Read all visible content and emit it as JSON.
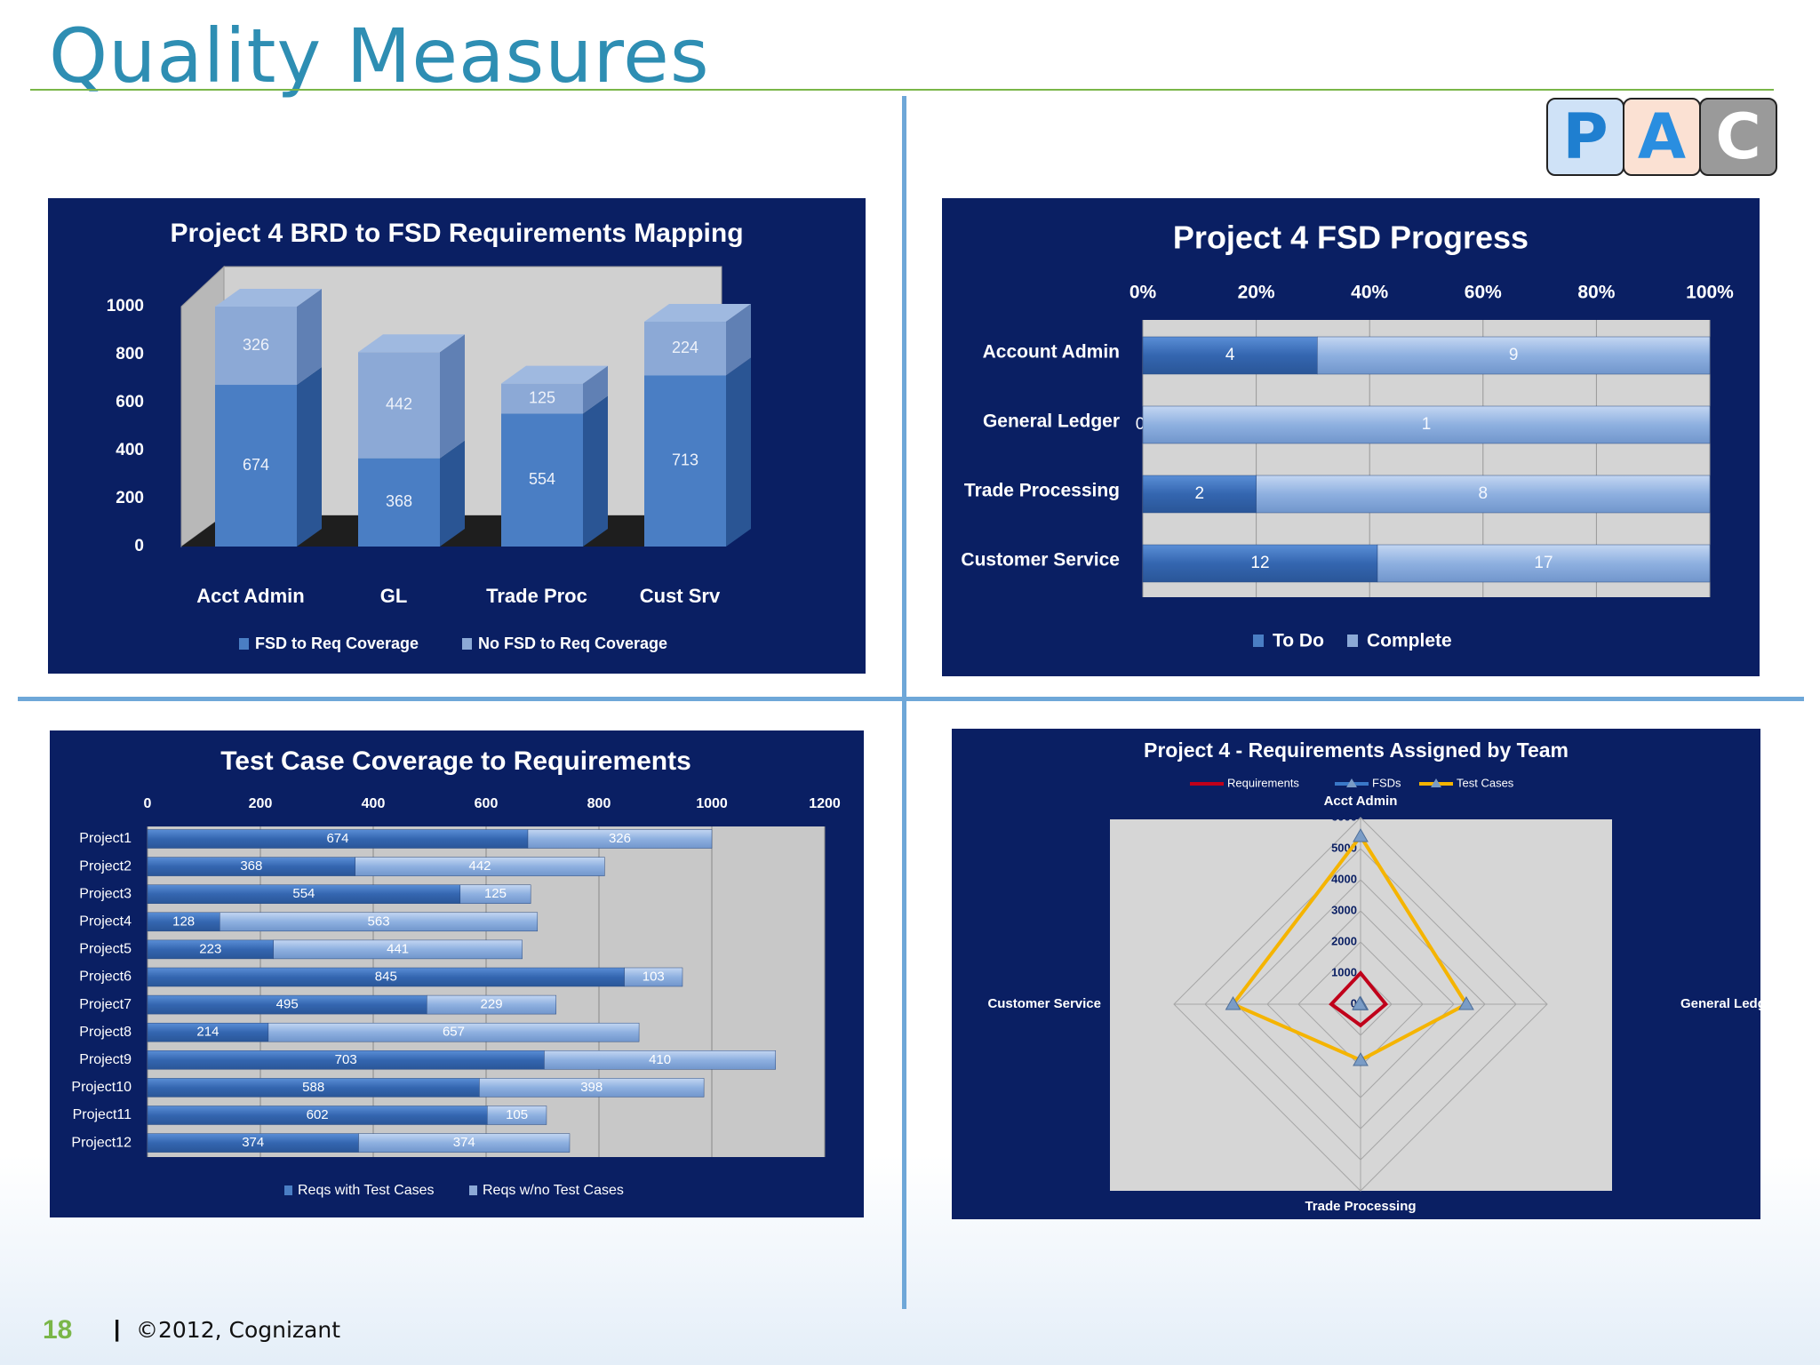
{
  "page": {
    "title": "Quality Measures",
    "page_number": "18",
    "separator": "|",
    "copyright": "©2012, Cognizant"
  },
  "logo": {
    "letters": [
      "P",
      "A",
      "C"
    ],
    "colors": [
      "#1f7fd0",
      "#2a8ee0",
      "#ffffff"
    ],
    "bg": [
      "#cfe2f7",
      "#fbe1d3",
      "#9a9a9a"
    ]
  },
  "colors": {
    "accent": "#2e8eb3",
    "rule": "#7ab648",
    "divider": "#6ea7d8",
    "panel_bg": "#0a1f63",
    "series_dark": "#3c6eb4",
    "series_light": "#8fb2e0",
    "radar_req": "#c0001a",
    "radar_fsd": "#3a78c8",
    "radar_tc": "#f5b400",
    "plot_bg": "#d8d8d8"
  },
  "chart_data": [
    {
      "id": "brd-fsd",
      "type": "bar",
      "stacked": true,
      "title": "Project 4 BRD to FSD Requirements Mapping",
      "categories": [
        "Acct Admin",
        "GL",
        "Trade Proc",
        "Cust Srv"
      ],
      "series": [
        {
          "name": "FSD to Req Coverage",
          "values": [
            674,
            368,
            554,
            713
          ]
        },
        {
          "name": "No FSD to Req Coverage",
          "values": [
            326,
            442,
            125,
            224
          ]
        }
      ],
      "ylim": [
        0,
        1000
      ],
      "yticks": [
        "0",
        "200",
        "400",
        "600",
        "800",
        "1000"
      ],
      "legend": "bottom",
      "grid": false
    },
    {
      "id": "fsd-progress",
      "type": "bar",
      "orientation": "horizontal",
      "stacked_percent": true,
      "title": "Project 4 FSD Progress",
      "categories": [
        "Account Admin",
        "General Ledger",
        "Trade Processing",
        "Customer Service"
      ],
      "series": [
        {
          "name": "To Do",
          "values": [
            4,
            0,
            2,
            12
          ]
        },
        {
          "name": "Complete",
          "values": [
            9,
            1,
            8,
            17
          ]
        }
      ],
      "xticks": [
        "0%",
        "20%",
        "40%",
        "60%",
        "80%",
        "100%"
      ],
      "legend": "bottom",
      "grid": true
    },
    {
      "id": "test-coverage",
      "type": "bar",
      "orientation": "horizontal",
      "stacked": true,
      "title": "Test Case Coverage to Requirements",
      "categories": [
        "Project1",
        "Project2",
        "Project3",
        "Project4",
        "Project5",
        "Project6",
        "Project7",
        "Project8",
        "Project9",
        "Project10",
        "Project11",
        "Project12"
      ],
      "series": [
        {
          "name": "Reqs with Test Cases",
          "values": [
            674,
            368,
            554,
            128,
            223,
            845,
            495,
            214,
            703,
            588,
            602,
            374
          ]
        },
        {
          "name": "Reqs w/no Test Cases",
          "values": [
            326,
            442,
            125,
            563,
            441,
            103,
            229,
            657,
            410,
            398,
            105,
            374
          ]
        }
      ],
      "xlim": [
        0,
        1200
      ],
      "xticks": [
        "0",
        "200",
        "400",
        "600",
        "800",
        "1000",
        "1200"
      ],
      "legend": "bottom",
      "grid": true
    },
    {
      "id": "radar",
      "type": "radar",
      "title": "Project 4 - Requirements Assigned by Team",
      "axes": [
        "Acct Admin",
        "General Ledger",
        "Trade Processing",
        "Customer Service"
      ],
      "series": [
        {
          "name": "Requirements",
          "values": [
            1000,
            810,
            680,
            940
          ]
        },
        {
          "name": "FSDs",
          "values": [
            13,
            1,
            10,
            29
          ]
        },
        {
          "name": "Test Cases",
          "values": [
            5400,
            3400,
            1800,
            4100
          ]
        }
      ],
      "rlim": [
        0,
        6000
      ],
      "rticks": [
        "0",
        "1000",
        "2000",
        "3000",
        "4000",
        "5000",
        "6000"
      ],
      "legend": "top",
      "grid": true
    }
  ]
}
